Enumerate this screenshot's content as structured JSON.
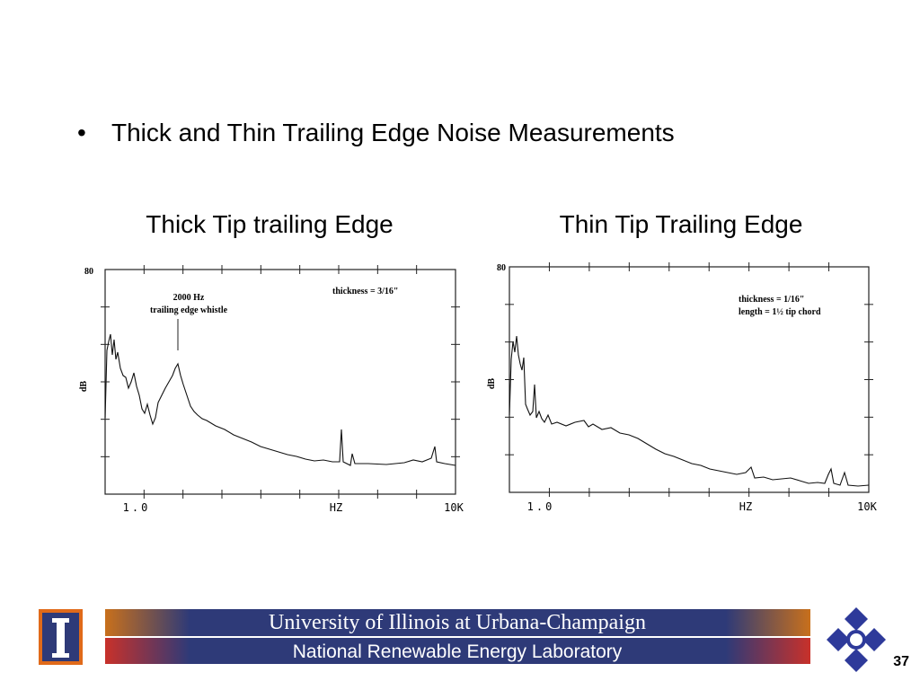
{
  "bullet": "Thick and Thin Trailing Edge Noise Measurements",
  "plots": [
    {
      "title": "Thick Tip trailing Edge",
      "y_top_label": "80",
      "y_axis_label": "dB",
      "x_labels": [
        "1.0",
        "HZ",
        "10K"
      ],
      "annotations": [
        "2000 Hz",
        "trailing edge whistle",
        "thickness = 3/16\""
      ]
    },
    {
      "title": "Thin Tip Trailing Edge",
      "y_top_label": "80",
      "y_axis_label": "dB",
      "x_labels": [
        "1.0",
        "HZ",
        "10K"
      ],
      "annotations": [
        "thickness = 1/16\"",
        "length = 1½ tip chord"
      ]
    }
  ],
  "footer": {
    "banner_top": "University of Illinois at Urbana-Champaign",
    "banner_bottom": "National Renewable Energy Laboratory",
    "page_number": 37
  }
}
